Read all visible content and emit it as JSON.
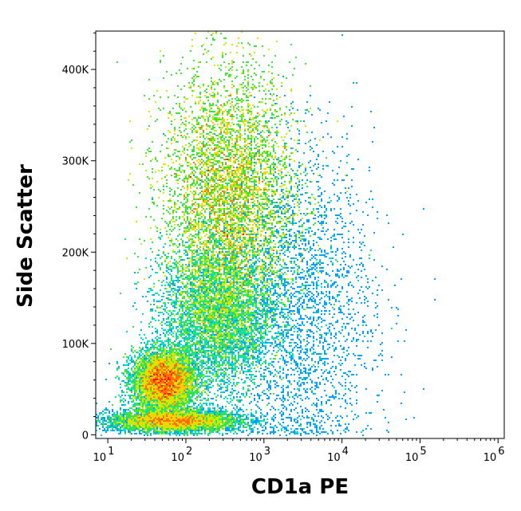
{
  "chart_data": {
    "type": "scatter",
    "subtype": "flow-cytometry-density-dot-plot",
    "title": "",
    "xlabel": "CD1a PE",
    "ylabel": "Side Scatter",
    "x_scale": "log",
    "xlim": [
      7,
      1200000
    ],
    "ylim": [
      -4000,
      442000
    ],
    "x_ticks": [
      {
        "value": 10,
        "base": "10",
        "exp": "1"
      },
      {
        "value": 100,
        "base": "10",
        "exp": "2"
      },
      {
        "value": 1000,
        "base": "10",
        "exp": "3"
      },
      {
        "value": 10000,
        "base": "10",
        "exp": "4"
      },
      {
        "value": 100000,
        "base": "10",
        "exp": "5"
      },
      {
        "value": 1000000,
        "base": "10",
        "exp": "6"
      }
    ],
    "y_ticks": [
      {
        "value": 0,
        "label": "0"
      },
      {
        "value": 100000,
        "label": "100K"
      },
      {
        "value": 200000,
        "label": "200K"
      },
      {
        "value": 300000,
        "label": "300K"
      },
      {
        "value": 400000,
        "label": "400K"
      }
    ],
    "grid": false,
    "legend": "none",
    "colormap": [
      "#0000d0",
      "#00a0ff",
      "#00e0c0",
      "#40e040",
      "#c0f000",
      "#ffd000",
      "#ff7000",
      "#ff1000"
    ],
    "populations": [
      {
        "name": "CD1a-negative low-SSC",
        "log10_x_center": 1.72,
        "log10_x_sd": 0.2,
        "y_center": 58000,
        "y_sd": 17000,
        "density": 0.22
      },
      {
        "name": "low-SSC baseline",
        "log10_x_center": 1.85,
        "log10_x_sd": 0.42,
        "y_center": 15000,
        "y_sd": 6000,
        "density": 0.12
      },
      {
        "name": "CD1a-positive high-SSC",
        "log10_x_center": 2.55,
        "log10_x_sd": 0.42,
        "y_center": 260000,
        "y_sd": 70000,
        "density": 0.46
      },
      {
        "name": "dim CD1a intermediate",
        "log10_x_center": 2.4,
        "log10_x_sd": 0.35,
        "y_center": 130000,
        "y_sd": 40000,
        "density": 0.15
      },
      {
        "name": "sparse high-CD1a scatter",
        "log10_x_center": 3.4,
        "log10_x_sd": 0.5,
        "y_center": 140000,
        "y_sd": 90000,
        "density": 0.05
      }
    ]
  }
}
